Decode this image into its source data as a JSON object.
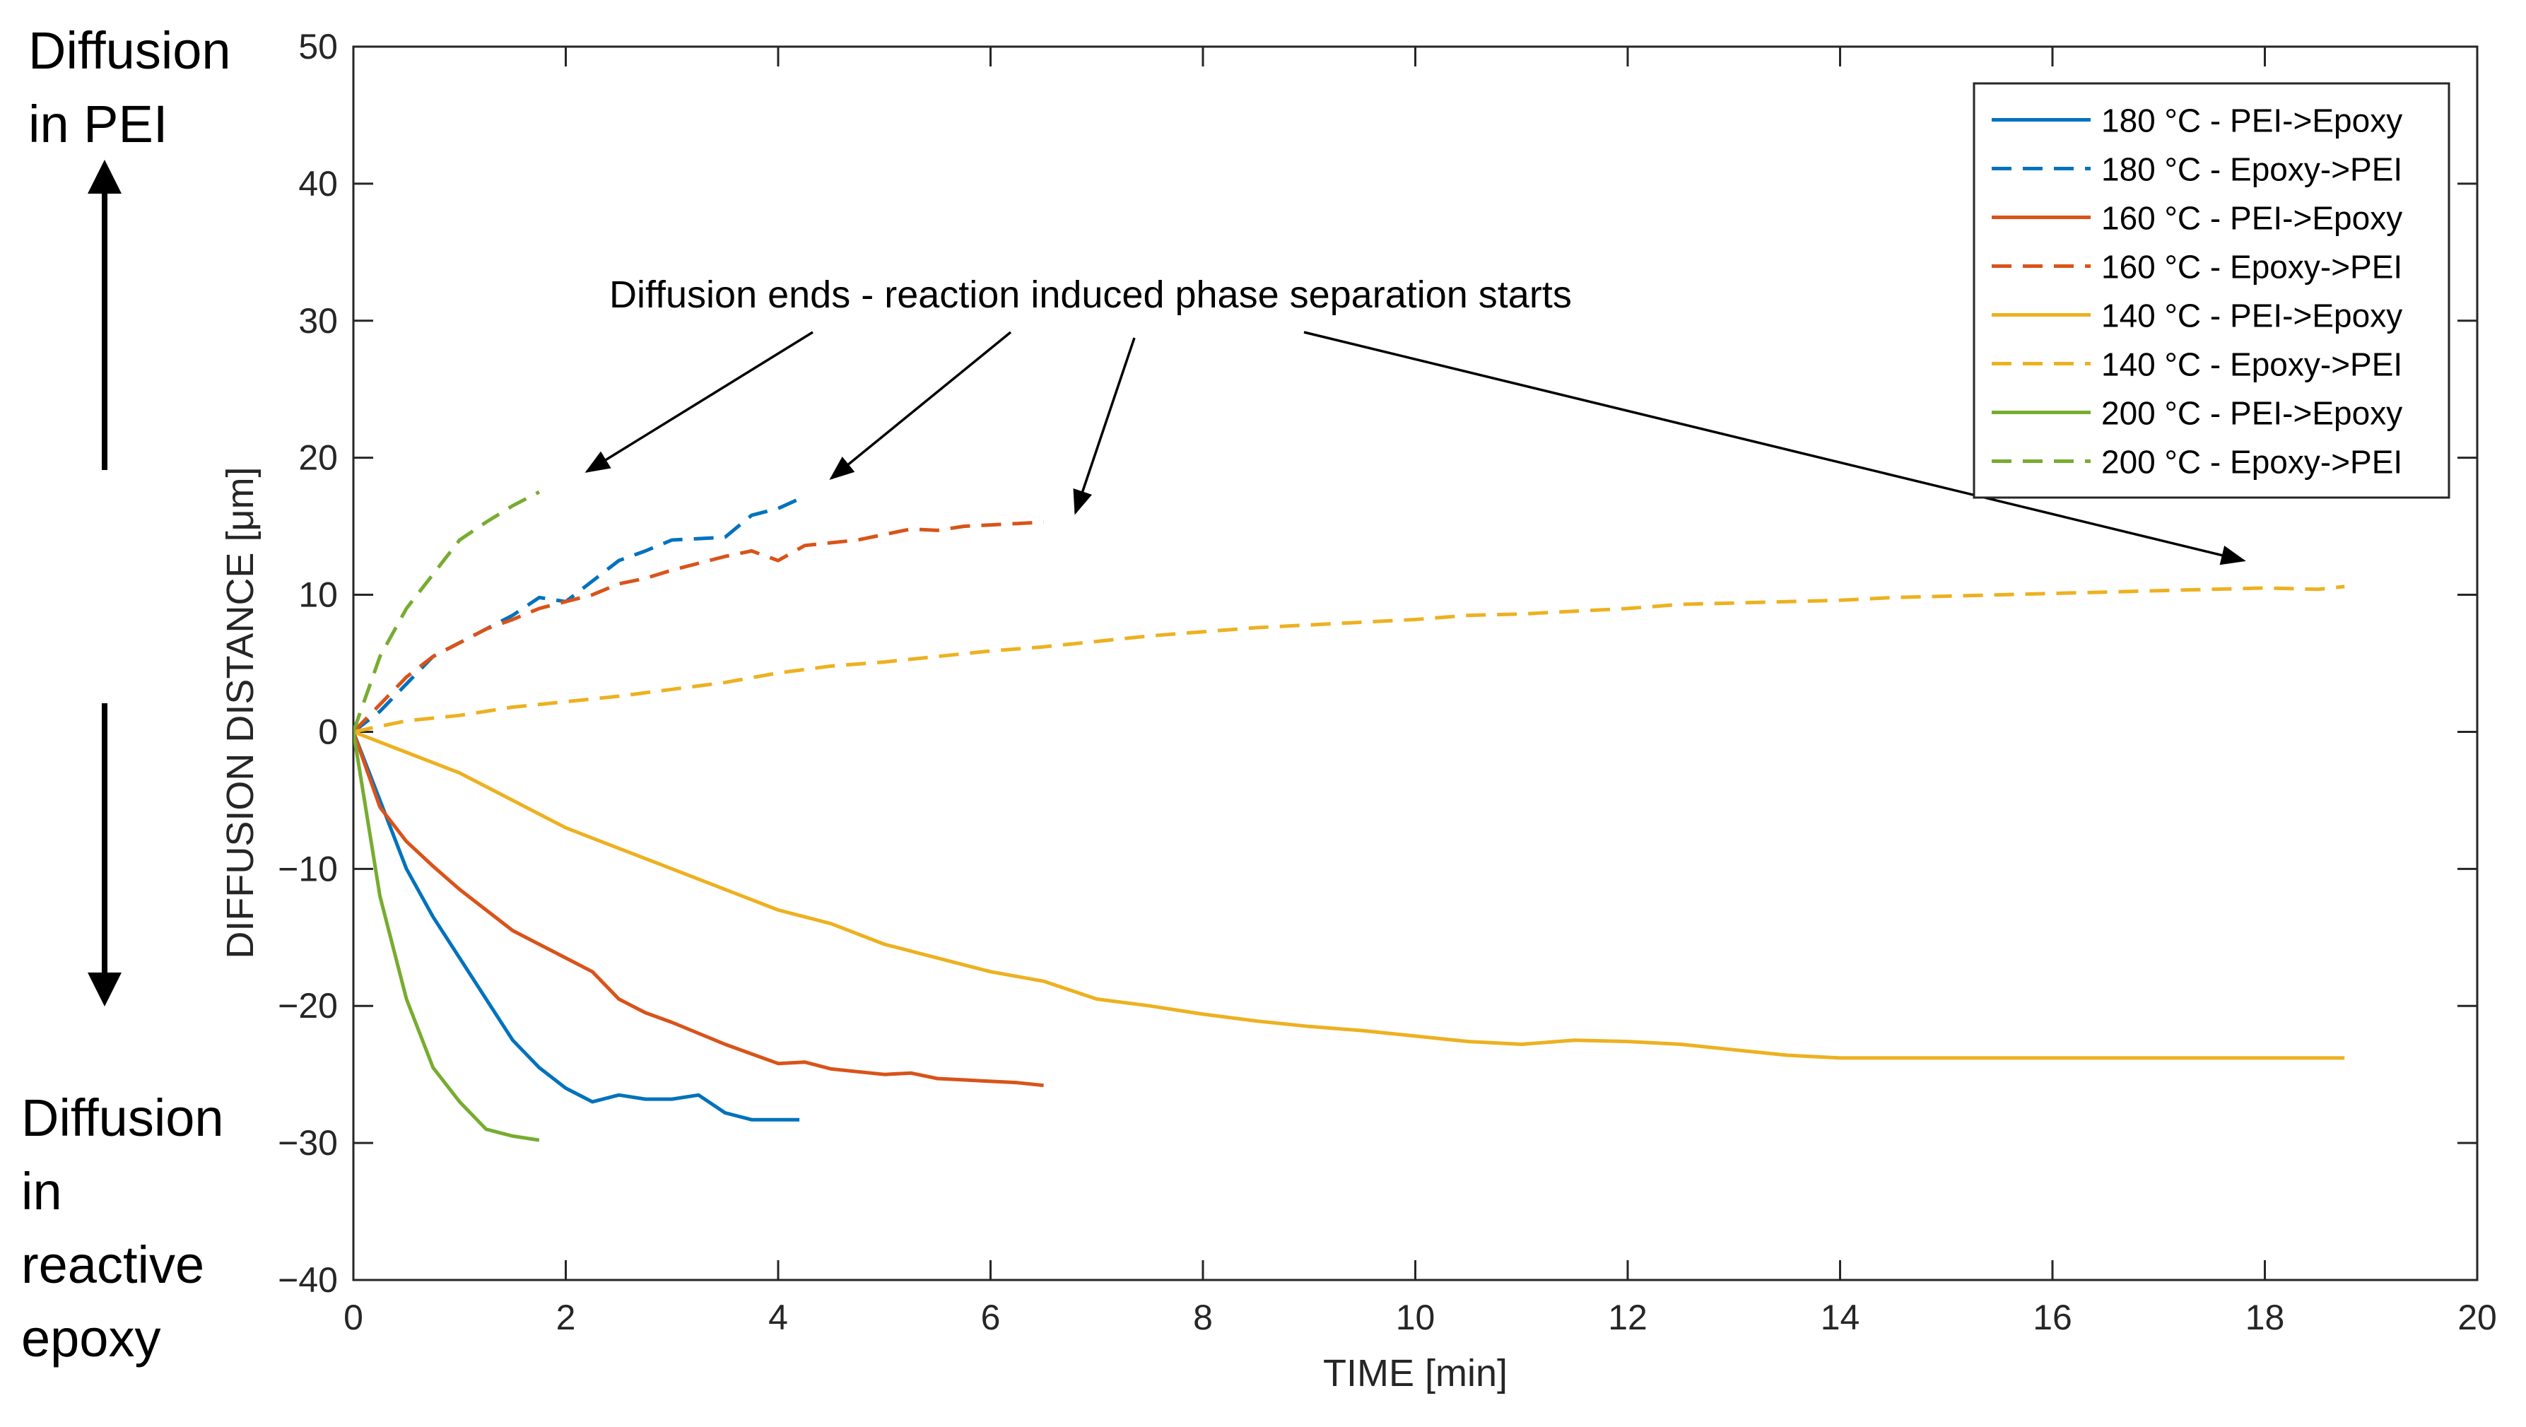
{
  "side_labels": {
    "top": [
      "Diffusion",
      "in PEI"
    ],
    "bottom": [
      "Diffusion",
      "in",
      "reactive",
      "epoxy"
    ]
  },
  "chart_data": {
    "type": "line",
    "title": "",
    "xlabel": "TIME [min]",
    "ylabel": "DIFFUSION DISTANCE [μm]",
    "xlim": [
      0,
      20
    ],
    "ylim": [
      -40,
      50
    ],
    "xticks": [
      0,
      2,
      4,
      6,
      8,
      10,
      12,
      14,
      16,
      18,
      20
    ],
    "yticks": [
      -40,
      -30,
      -20,
      -10,
      0,
      10,
      20,
      30,
      40,
      50
    ],
    "ytick_labels": [
      "−40",
      "−30",
      "−20",
      "−10",
      "0",
      "10",
      "20",
      "30",
      "40",
      "50"
    ],
    "grid": false,
    "legend_position": "top-right",
    "annotation": {
      "text": "Diffusion ends - reaction induced phase separation starts",
      "arrows_point_to": [
        [
          2.2,
          19
        ],
        [
          4.5,
          18.5
        ],
        [
          6.8,
          16
        ],
        [
          17.8,
          12.5
        ]
      ]
    },
    "series": [
      {
        "name": "180 °C - PEI->Epoxy",
        "color": "#0072BD",
        "dash": "solid",
        "x": [
          0,
          0.25,
          0.5,
          0.75,
          1,
          1.25,
          1.5,
          1.75,
          2,
          2.25,
          2.5,
          2.75,
          3,
          3.25,
          3.5,
          3.75,
          4,
          4.2
        ],
        "y": [
          0,
          -5,
          -10,
          -13.5,
          -16.5,
          -19.5,
          -22.5,
          -24.5,
          -26,
          -27,
          -26.5,
          -26.8,
          -26.8,
          -26.5,
          -27.8,
          -28.3,
          -28.3,
          -28.3
        ]
      },
      {
        "name": "180 °C - Epoxy->PEI",
        "color": "#0072BD",
        "dash": "dashed",
        "x": [
          0,
          0.25,
          0.5,
          0.75,
          1,
          1.25,
          1.5,
          1.75,
          2,
          2.25,
          2.5,
          2.75,
          3,
          3.25,
          3.5,
          3.75,
          4,
          4.2
        ],
        "y": [
          0,
          1.5,
          3.5,
          5.5,
          6.5,
          7.5,
          8.5,
          9.8,
          9.5,
          11,
          12.5,
          13.2,
          14,
          14.1,
          14.2,
          15.8,
          16.3,
          17
        ]
      },
      {
        "name": "160 °C - PEI->Epoxy",
        "color": "#D95319",
        "dash": "solid",
        "x": [
          0,
          0.25,
          0.5,
          0.75,
          1,
          1.25,
          1.5,
          1.75,
          2,
          2.25,
          2.5,
          2.75,
          3,
          3.25,
          3.5,
          3.75,
          4,
          4.25,
          4.5,
          4.75,
          5,
          5.25,
          5.5,
          5.75,
          6,
          6.25,
          6.5
        ],
        "y": [
          0,
          -5.5,
          -8,
          -9.8,
          -11.5,
          -13,
          -14.5,
          -15.5,
          -16.5,
          -17.5,
          -19.5,
          -20.5,
          -21.2,
          -22,
          -22.8,
          -23.5,
          -24.2,
          -24.1,
          -24.6,
          -24.8,
          -25,
          -24.9,
          -25.3,
          -25.4,
          -25.5,
          -25.6,
          -25.8
        ]
      },
      {
        "name": "160 °C - Epoxy->PEI",
        "color": "#D95319",
        "dash": "dashed",
        "x": [
          0,
          0.25,
          0.5,
          0.75,
          1,
          1.25,
          1.5,
          1.75,
          2,
          2.25,
          2.5,
          2.75,
          3,
          3.25,
          3.5,
          3.75,
          4,
          4.25,
          4.5,
          4.75,
          5,
          5.25,
          5.5,
          5.75,
          6,
          6.25,
          6.5
        ],
        "y": [
          0,
          2,
          4,
          5.5,
          6.5,
          7.5,
          8.2,
          9,
          9.5,
          10,
          10.8,
          11.2,
          11.8,
          12.3,
          12.8,
          13.2,
          12.5,
          13.6,
          13.8,
          14,
          14.4,
          14.8,
          14.7,
          15,
          15.1,
          15.2,
          15.3
        ]
      },
      {
        "name": "140 °C - PEI->Epoxy",
        "color": "#EDB120",
        "dash": "solid",
        "x": [
          0,
          0.5,
          1,
          1.5,
          2,
          2.5,
          3,
          3.5,
          4,
          4.5,
          5,
          5.5,
          6,
          6.5,
          7,
          7.5,
          8,
          8.5,
          9,
          9.5,
          10,
          10.5,
          11,
          11.5,
          12,
          12.5,
          13,
          13.5,
          14,
          15,
          16,
          17,
          18,
          18.75
        ],
        "y": [
          0,
          -1.5,
          -3,
          -5,
          -7,
          -8.5,
          -10,
          -11.5,
          -13,
          -14,
          -15.5,
          -16.5,
          -17.5,
          -18.2,
          -19.5,
          -20,
          -20.6,
          -21.1,
          -21.5,
          -21.8,
          -22.2,
          -22.6,
          -22.8,
          -22.5,
          -22.6,
          -22.8,
          -23.2,
          -23.6,
          -23.8,
          -23.8,
          -23.8,
          -23.8,
          -23.8,
          -23.8
        ]
      },
      {
        "name": "140 °C - Epoxy->PEI",
        "color": "#EDB120",
        "dash": "dashed",
        "x": [
          0,
          0.5,
          1,
          1.5,
          2,
          2.5,
          3,
          3.5,
          4,
          4.5,
          5,
          5.5,
          6,
          6.5,
          7,
          7.5,
          8,
          8.5,
          9,
          9.5,
          10,
          10.5,
          11,
          11.5,
          12,
          12.5,
          13,
          13.5,
          14,
          14.5,
          15,
          15.5,
          16,
          16.5,
          17,
          17.5,
          18,
          18.5,
          18.75
        ],
        "y": [
          0,
          0.8,
          1.2,
          1.8,
          2.2,
          2.6,
          3.1,
          3.6,
          4.3,
          4.8,
          5.1,
          5.5,
          5.9,
          6.2,
          6.6,
          7,
          7.3,
          7.6,
          7.8,
          8,
          8.2,
          8.5,
          8.6,
          8.8,
          9,
          9.3,
          9.4,
          9.5,
          9.6,
          9.8,
          9.9,
          10,
          10.1,
          10.2,
          10.3,
          10.4,
          10.5,
          10.4,
          10.6
        ]
      },
      {
        "name": "200 °C - PEI->Epoxy",
        "color": "#77AC30",
        "dash": "solid",
        "x": [
          0,
          0.25,
          0.5,
          0.75,
          1,
          1.25,
          1.5,
          1.75
        ],
        "y": [
          0,
          -12,
          -19.5,
          -24.5,
          -27,
          -29,
          -29.5,
          -29.8
        ]
      },
      {
        "name": "200 °C - Epoxy->PEI",
        "color": "#77AC30",
        "dash": "dashed",
        "x": [
          0,
          0.25,
          0.5,
          0.75,
          1,
          1.25,
          1.5,
          1.75
        ],
        "y": [
          0,
          5.5,
          9,
          11.5,
          14,
          15.3,
          16.5,
          17.5
        ]
      }
    ]
  }
}
